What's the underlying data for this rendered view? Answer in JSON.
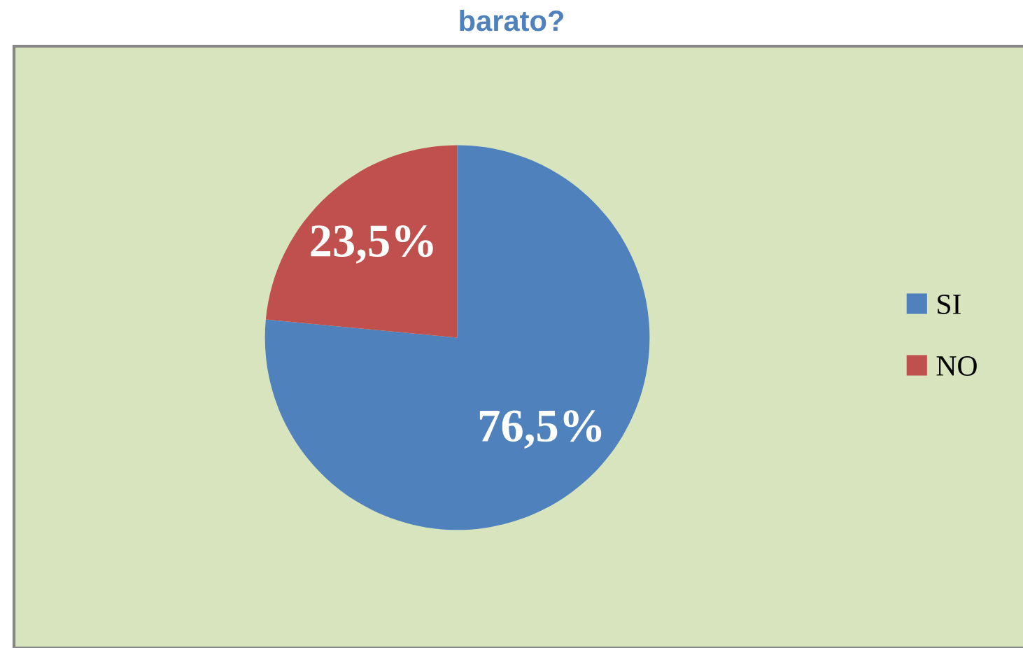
{
  "chart_data": {
    "type": "pie",
    "title": "barato?",
    "categories": [
      "SI",
      "NO"
    ],
    "values": [
      76.5,
      23.5
    ],
    "colors": [
      "#4f81bd",
      "#c0504d"
    ],
    "value_labels": [
      "76,5%",
      "23,5%"
    ],
    "legend": "right"
  }
}
